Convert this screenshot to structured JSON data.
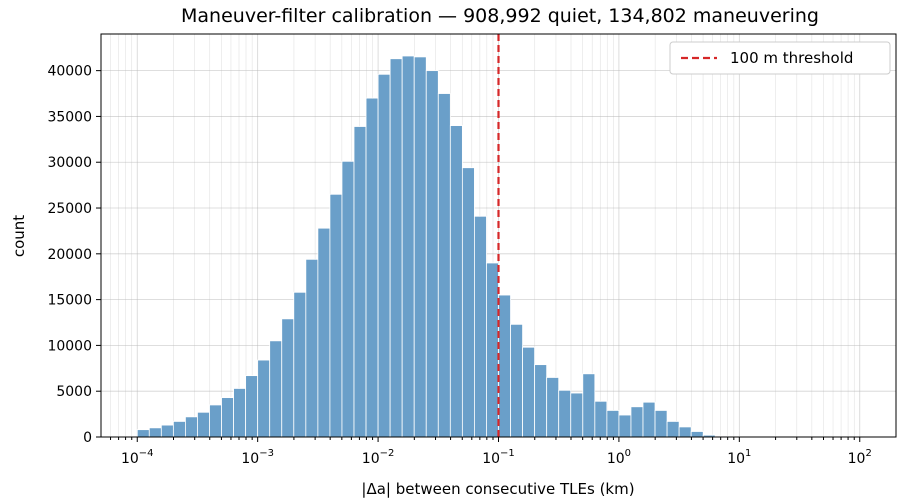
{
  "chart_data": {
    "type": "bar",
    "title": "Maneuver-filter calibration — 908,992 quiet, 134,802 maneuvering",
    "xlabel": "|Δa| between consecutive TLEs (km)",
    "ylabel": "count",
    "x_scale": "log",
    "xlim": [
      5e-05,
      200
    ],
    "ylim": [
      0,
      44000
    ],
    "yticks": [
      0,
      5000,
      10000,
      15000,
      20000,
      25000,
      30000,
      35000,
      40000
    ],
    "xticks": [
      {
        "value": 0.0001,
        "base": "10",
        "exp": "−4"
      },
      {
        "value": 0.001,
        "base": "10",
        "exp": "−3"
      },
      {
        "value": 0.01,
        "base": "10",
        "exp": "−2"
      },
      {
        "value": 0.1,
        "base": "10",
        "exp": "−1"
      },
      {
        "value": 1,
        "base": "10",
        "exp": "0"
      },
      {
        "value": 10,
        "base": "10",
        "exp": "1"
      },
      {
        "value": 100,
        "base": "10",
        "exp": "2"
      }
    ],
    "grid": true,
    "legend_position": "top-right",
    "bin_log_start": -4.0,
    "bin_log_width": 0.1,
    "values": [
      800,
      1000,
      1300,
      1700,
      2200,
      2700,
      3500,
      4300,
      5300,
      6700,
      8400,
      10500,
      12900,
      15800,
      19400,
      22800,
      26500,
      30100,
      33900,
      37000,
      39600,
      41300,
      41600,
      41500,
      40000,
      37500,
      34000,
      29400,
      24100,
      19000,
      15500,
      12300,
      9800,
      7900,
      6500,
      5100,
      4800,
      6900,
      3900,
      2900,
      2400,
      3300,
      3800,
      2900,
      1700,
      1100,
      600,
      200,
      100,
      50,
      40,
      30,
      25,
      20,
      15,
      10,
      10,
      10,
      5,
      5,
      5
    ],
    "threshold": {
      "value": 0.1,
      "label": "100 m threshold",
      "color": "#d62728"
    },
    "bar_color": "#6a9fc9"
  }
}
